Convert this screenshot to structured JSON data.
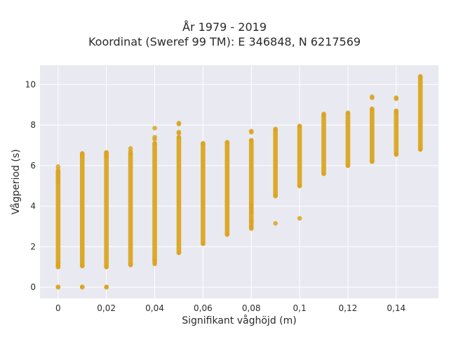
{
  "chart_data": {
    "type": "scatter",
    "title_lines": [
      "År 1979 - 2019",
      "Koordinat (Sweref 99 TM): E 346848, N 6217569"
    ],
    "xlabel": "Signifikant våghöjd (m)",
    "ylabel": "Vågperiod (s)",
    "xlim": [
      -0.0075,
      0.1575
    ],
    "ylim": [
      -0.55,
      10.95
    ],
    "x_ticks": [
      0,
      0.02,
      0.04,
      0.06,
      0.08,
      0.1,
      0.12,
      0.14
    ],
    "x_tick_labels": [
      "0",
      "0,02",
      "0,04",
      "0,06",
      "0,08",
      "0,1",
      "0,12",
      "0,14"
    ],
    "y_ticks": [
      0,
      2,
      4,
      6,
      8,
      10
    ],
    "y_tick_labels": [
      "0",
      "2",
      "4",
      "6",
      "8",
      "10"
    ],
    "grid": true,
    "marker_color": "#DAA520",
    "background_color": "#E9E9F1",
    "grid_color": "#FFFFFF",
    "columns": [
      {
        "x": 0.0,
        "range": [
          1.0,
          5.7
        ],
        "outliers": [
          0,
          0.02,
          5.95,
          5.8,
          5.6,
          5.45,
          5.3,
          5.2,
          1.1,
          1.2
        ]
      },
      {
        "x": 0.01,
        "range": [
          1.05,
          6.6
        ],
        "outliers": [
          0,
          0.02,
          6.55,
          6.5,
          6.45
        ]
      },
      {
        "x": 0.02,
        "range": [
          1.0,
          6.65
        ],
        "outliers": [
          0,
          0.02,
          6.6,
          6.5,
          6.45
        ]
      },
      {
        "x": 0.03,
        "range": [
          1.1,
          6.6
        ],
        "outliers": [
          6.85,
          6.7
        ]
      },
      {
        "x": 0.04,
        "range": [
          1.3,
          7.1
        ],
        "outliers": [
          1.15,
          1.2,
          7.3,
          7.4,
          7.85
        ]
      },
      {
        "x": 0.05,
        "range": [
          1.7,
          7.4
        ],
        "outliers": [
          7.6,
          7.65,
          8.05,
          8.1
        ]
      },
      {
        "x": 0.06,
        "range": [
          2.15,
          7.1
        ],
        "outliers": []
      },
      {
        "x": 0.07,
        "range": [
          2.6,
          7.15
        ],
        "outliers": []
      },
      {
        "x": 0.08,
        "range": [
          2.9,
          7.25
        ],
        "outliers": [
          3.25,
          3.0,
          3.7,
          3.95,
          4.05,
          7.7,
          7.65
        ]
      },
      {
        "x": 0.09,
        "range": [
          4.5,
          7.8
        ],
        "outliers": [
          3.15
        ]
      },
      {
        "x": 0.1,
        "range": [
          5.0,
          7.95
        ],
        "outliers": [
          3.4
        ]
      },
      {
        "x": 0.11,
        "range": [
          5.6,
          8.5
        ],
        "outliers": [
          8.55
        ]
      },
      {
        "x": 0.12,
        "range": [
          6.0,
          8.6
        ],
        "outliers": []
      },
      {
        "x": 0.13,
        "range": [
          6.2,
          8.8
        ],
        "outliers": [
          9.35,
          9.4
        ]
      },
      {
        "x": 0.14,
        "range": [
          6.55,
          8.7
        ],
        "outliers": [
          9.3,
          9.35
        ]
      },
      {
        "x": 0.15,
        "range": [
          6.8,
          10.4
        ],
        "outliers": []
      }
    ]
  }
}
